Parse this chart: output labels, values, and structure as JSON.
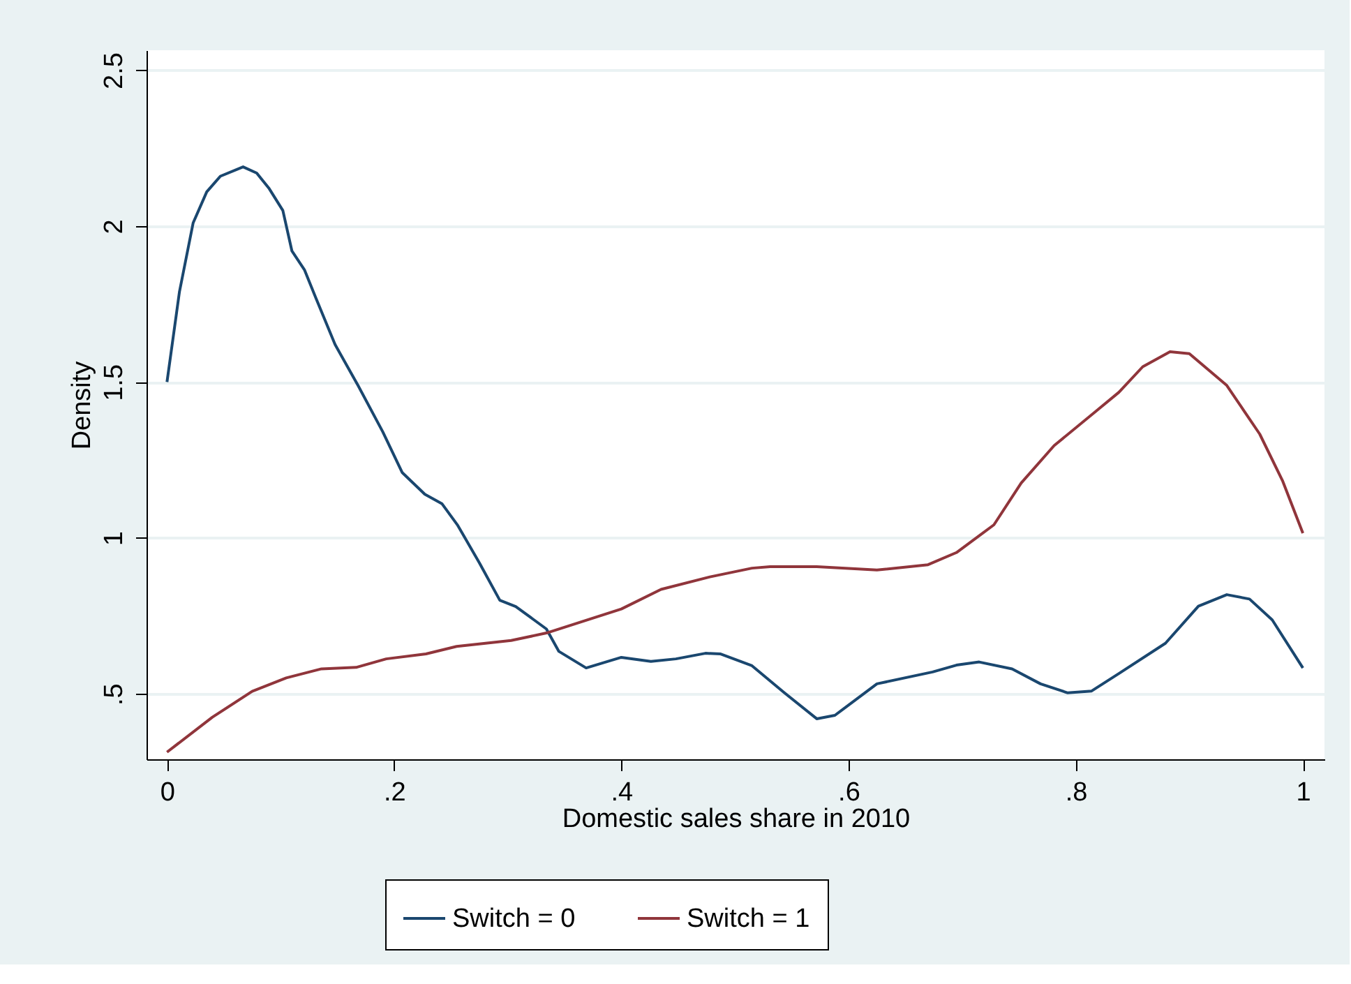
{
  "chart_data": {
    "type": "line",
    "xlabel": "Domestic sales share in 2010",
    "ylabel": "Density",
    "xlim": [
      -0.018,
      1.019
    ],
    "ylim": [
      0.29,
      2.564
    ],
    "xticks": [
      0,
      {
        "value": 0.2,
        "label": ".2"
      },
      {
        "value": 0.4,
        "label": ".4"
      },
      {
        "value": 0.6,
        "label": ".6"
      },
      {
        "value": 0.8,
        "label": ".8"
      },
      1
    ],
    "yticks": [
      {
        "value": 0.5,
        "label": ".5"
      },
      1,
      1.5,
      2,
      2.5
    ],
    "grid": "y",
    "legend": "bottom",
    "marker": "none",
    "line_style": "solid",
    "series": [
      {
        "name": "Switch = 0",
        "color": "#1a476f",
        "x": [
          0.0,
          0.011,
          0.023,
          0.035,
          0.047,
          0.067,
          0.079,
          0.09,
          0.102,
          0.11,
          0.121,
          0.131,
          0.148,
          0.168,
          0.19,
          0.207,
          0.227,
          0.242,
          0.256,
          0.275,
          0.293,
          0.307,
          0.334,
          0.345,
          0.369,
          0.4,
          0.426,
          0.448,
          0.474,
          0.487,
          0.515,
          0.543,
          0.572,
          0.588,
          0.625,
          0.674,
          0.695,
          0.715,
          0.744,
          0.769,
          0.793,
          0.814,
          0.838,
          0.879,
          0.908,
          0.933,
          0.953,
          0.973,
          1.0
        ],
        "values": [
          1.5,
          1.79,
          2.01,
          2.11,
          2.16,
          2.19,
          2.17,
          2.12,
          2.05,
          1.92,
          1.86,
          1.77,
          1.62,
          1.49,
          1.34,
          1.21,
          1.14,
          1.11,
          1.04,
          0.92,
          0.8,
          0.78,
          0.708,
          0.636,
          0.583,
          0.617,
          0.604,
          0.612,
          0.63,
          0.628,
          0.59,
          0.505,
          0.42,
          0.431,
          0.532,
          0.57,
          0.592,
          0.602,
          0.58,
          0.532,
          0.503,
          0.509,
          0.565,
          0.662,
          0.781,
          0.818,
          0.804,
          0.737,
          0.583
        ]
      },
      {
        "name": "Switch = 1",
        "color": "#90353b",
        "x": [
          0.0,
          0.04,
          0.075,
          0.105,
          0.136,
          0.167,
          0.193,
          0.228,
          0.255,
          0.303,
          0.334,
          0.4,
          0.435,
          0.478,
          0.515,
          0.531,
          0.572,
          0.625,
          0.67,
          0.695,
          0.728,
          0.752,
          0.781,
          0.818,
          0.838,
          0.859,
          0.883,
          0.9,
          0.933,
          0.962,
          0.982,
          1.0
        ],
        "values": [
          0.313,
          0.425,
          0.508,
          0.551,
          0.58,
          0.585,
          0.612,
          0.628,
          0.652,
          0.671,
          0.695,
          0.772,
          0.835,
          0.875,
          0.903,
          0.908,
          0.908,
          0.897,
          0.914,
          0.953,
          1.042,
          1.176,
          1.296,
          1.407,
          1.467,
          1.549,
          1.597,
          1.591,
          1.489,
          1.333,
          1.184,
          1.015
        ]
      }
    ]
  }
}
